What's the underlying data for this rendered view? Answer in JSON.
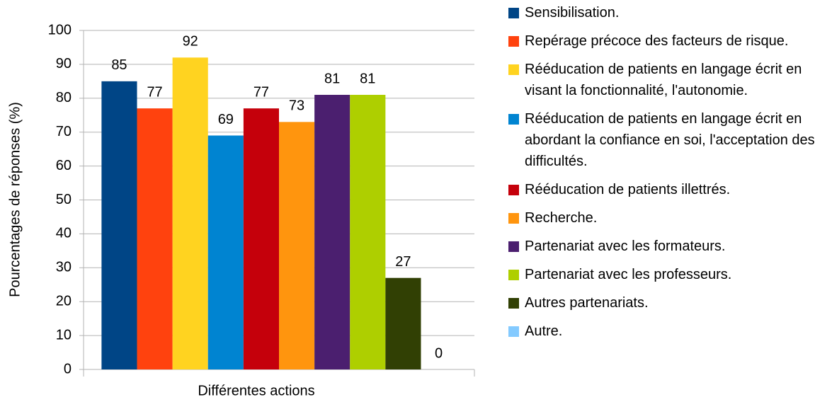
{
  "chart_data": {
    "type": "bar",
    "y_label": "Pourcentages de réponses (%)",
    "categories": [
      "Différentes actions"
    ],
    "series": [
      {
        "name": "Sensibilisation.",
        "color": "#004586",
        "values": [
          85
        ]
      },
      {
        "name": "Repérage précoce des facteurs de risque.",
        "color": "#ff420e",
        "values": [
          77
        ]
      },
      {
        "name": "Rééducation de patients en langage écrit en visant la fonctionnalité, l'autonomie.",
        "color": "#ffd320",
        "values": [
          92
        ]
      },
      {
        "name": "Rééducation de patients en langage écrit en abordant la confiance en soi, l'acceptation des difficultés.",
        "color": "#0084d1",
        "values": [
          69
        ]
      },
      {
        "name": "Rééducation de patients illettrés.",
        "color": "#c5000b",
        "values": [
          77
        ]
      },
      {
        "name": "Recherche.",
        "color": "#ff950e",
        "values": [
          73
        ]
      },
      {
        "name": "Partenariat avec les formateurs.",
        "color": "#4b1f6f",
        "values": [
          81
        ]
      },
      {
        "name": "Partenariat avec les professeurs.",
        "color": "#aecf00",
        "values": [
          81
        ]
      },
      {
        "name": "Autres partenariats.",
        "color": "#314004",
        "values": [
          27
        ]
      },
      {
        "name": "Autre.",
        "color": "#83caff",
        "values": [
          0
        ]
      }
    ],
    "ylim": [
      0,
      100
    ],
    "yticks": [
      0,
      10,
      20,
      30,
      40,
      50,
      60,
      70,
      80,
      90,
      100
    ],
    "grid": true,
    "legend": "right"
  }
}
